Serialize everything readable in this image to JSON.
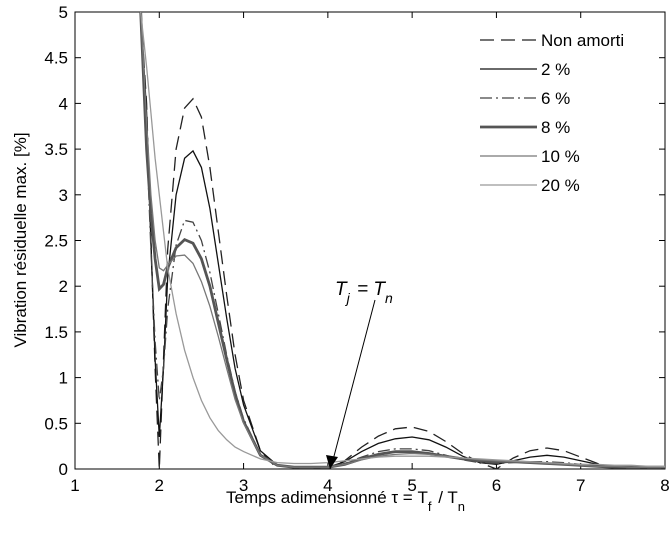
{
  "chart_data": {
    "type": "line",
    "title": "",
    "xlabel": "Temps adimensionné τ = T_f / T_n",
    "ylabel": "Vibration résiduelle max. [%]",
    "xlim": [
      1,
      8
    ],
    "ylim": [
      0,
      5
    ],
    "xticks": [
      "1",
      "2",
      "3",
      "4",
      "5",
      "6",
      "7",
      "8"
    ],
    "yticks": [
      "0",
      "0.5",
      "1",
      "1.5",
      "2",
      "2.5",
      "3",
      "3.5",
      "4",
      "4.5",
      "5"
    ],
    "grid": false,
    "legend_position": "top-right",
    "annotation": {
      "text": "T_j = T_n",
      "x": 4,
      "y": 0
    },
    "series": [
      {
        "name": "Non amorti",
        "color": "#222222",
        "dash": "dashed",
        "x": [
          1.78,
          1.85,
          1.9,
          1.95,
          2.0,
          2.05,
          2.1,
          2.2,
          2.3,
          2.4,
          2.5,
          2.6,
          2.7,
          2.8,
          2.9,
          3.0,
          3.2,
          3.4,
          3.6,
          3.8,
          4.0,
          4.2,
          4.4,
          4.6,
          4.8,
          5.0,
          5.2,
          5.4,
          5.6,
          5.8,
          6.0,
          6.2,
          6.4,
          6.6,
          6.8,
          7.0,
          7.2,
          7.4,
          7.6,
          7.8,
          8.0
        ],
        "y": [
          5.0,
          4.0,
          2.5,
          1.1,
          0.0,
          1.2,
          2.4,
          3.5,
          3.95,
          4.05,
          3.85,
          3.3,
          2.6,
          1.9,
          1.25,
          0.75,
          0.2,
          0.0,
          0.0,
          0.0,
          0.0,
          0.09,
          0.24,
          0.36,
          0.44,
          0.46,
          0.41,
          0.3,
          0.17,
          0.07,
          0.0,
          0.12,
          0.2,
          0.23,
          0.2,
          0.13,
          0.06,
          0.02,
          0.0,
          0.0,
          0.0
        ]
      },
      {
        "name": "2 %",
        "color": "#111111",
        "dash": "solid",
        "x": [
          1.78,
          1.85,
          1.9,
          1.95,
          2.0,
          2.05,
          2.1,
          2.2,
          2.3,
          2.4,
          2.5,
          2.6,
          2.7,
          2.8,
          2.9,
          3.0,
          3.2,
          3.4,
          3.6,
          3.8,
          4.0,
          4.2,
          4.4,
          4.6,
          4.8,
          5.0,
          5.2,
          5.4,
          5.6,
          5.8,
          6.0,
          6.2,
          6.4,
          6.6,
          6.8,
          7.0,
          7.2,
          7.4,
          7.6,
          7.8,
          8.0
        ],
        "y": [
          5.0,
          3.9,
          2.5,
          1.2,
          0.35,
          1.1,
          2.1,
          3.0,
          3.4,
          3.48,
          3.3,
          2.85,
          2.25,
          1.65,
          1.1,
          0.7,
          0.2,
          0.04,
          0.02,
          0.02,
          0.02,
          0.08,
          0.19,
          0.28,
          0.33,
          0.35,
          0.32,
          0.24,
          0.14,
          0.07,
          0.05,
          0.09,
          0.13,
          0.15,
          0.13,
          0.09,
          0.05,
          0.03,
          0.02,
          0.02,
          0.02
        ]
      },
      {
        "name": "6 %",
        "color": "#444444",
        "dash": "dashdot",
        "x": [
          1.78,
          1.85,
          1.9,
          1.95,
          2.0,
          2.05,
          2.1,
          2.2,
          2.3,
          2.4,
          2.5,
          2.6,
          2.7,
          2.8,
          2.9,
          3.0,
          3.2,
          3.4,
          3.6,
          3.8,
          4.0,
          4.2,
          4.4,
          4.6,
          4.8,
          5.0,
          5.2,
          5.4,
          5.6,
          5.8,
          6.0,
          6.2,
          6.4,
          6.6,
          6.8,
          7.0,
          7.2,
          7.4,
          7.6,
          7.8,
          8.0
        ],
        "y": [
          5.0,
          3.6,
          2.4,
          1.4,
          0.75,
          1.1,
          1.75,
          2.45,
          2.72,
          2.7,
          2.5,
          2.15,
          1.7,
          1.25,
          0.85,
          0.55,
          0.16,
          0.04,
          0.02,
          0.02,
          0.02,
          0.06,
          0.13,
          0.19,
          0.22,
          0.22,
          0.2,
          0.15,
          0.1,
          0.07,
          0.06,
          0.07,
          0.08,
          0.08,
          0.07,
          0.05,
          0.04,
          0.03,
          0.02,
          0.02,
          0.02
        ]
      },
      {
        "name": "8 %",
        "color": "#555555",
        "dash": "bold",
        "x": [
          1.78,
          1.85,
          1.9,
          1.95,
          2.0,
          2.05,
          2.1,
          2.2,
          2.3,
          2.4,
          2.5,
          2.6,
          2.7,
          2.8,
          2.9,
          3.0,
          3.2,
          3.4,
          3.6,
          3.8,
          4.0,
          4.2,
          4.4,
          4.6,
          4.8,
          5.0,
          5.2,
          5.4,
          5.6,
          5.8,
          6.0,
          6.2,
          6.4,
          6.6,
          6.8,
          7.0,
          7.2,
          7.4,
          7.6,
          7.8,
          8.0
        ],
        "y": [
          5.0,
          3.5,
          2.8,
          2.3,
          1.97,
          2.02,
          2.2,
          2.42,
          2.51,
          2.47,
          2.3,
          2.0,
          1.6,
          1.2,
          0.82,
          0.52,
          0.15,
          0.04,
          0.02,
          0.02,
          0.02,
          0.05,
          0.11,
          0.16,
          0.19,
          0.19,
          0.17,
          0.14,
          0.11,
          0.09,
          0.08,
          0.08,
          0.07,
          0.06,
          0.05,
          0.04,
          0.03,
          0.02,
          0.02,
          0.02,
          0.02
        ]
      },
      {
        "name": "10 %",
        "color": "#777777",
        "dash": "solid",
        "x": [
          1.78,
          1.85,
          1.9,
          1.95,
          2.0,
          2.05,
          2.1,
          2.2,
          2.3,
          2.4,
          2.5,
          2.6,
          2.7,
          2.8,
          2.9,
          3.0,
          3.2,
          3.4,
          3.6,
          3.8,
          4.0,
          4.2,
          4.4,
          4.6,
          4.8,
          5.0,
          5.2,
          5.4,
          5.6,
          5.8,
          6.0,
          6.2,
          6.4,
          6.6,
          6.8,
          7.0,
          7.2,
          7.4,
          7.6,
          7.8,
          8.0
        ],
        "y": [
          5.0,
          3.8,
          3.0,
          2.5,
          2.2,
          2.17,
          2.23,
          2.33,
          2.34,
          2.25,
          2.05,
          1.78,
          1.45,
          1.1,
          0.76,
          0.5,
          0.15,
          0.04,
          0.02,
          0.02,
          0.02,
          0.05,
          0.1,
          0.14,
          0.16,
          0.17,
          0.16,
          0.14,
          0.12,
          0.1,
          0.09,
          0.08,
          0.07,
          0.06,
          0.05,
          0.04,
          0.03,
          0.03,
          0.02,
          0.02,
          0.02
        ]
      },
      {
        "name": "20 %",
        "color": "#999999",
        "dash": "solid",
        "x": [
          1.78,
          1.85,
          1.9,
          1.95,
          2.0,
          2.05,
          2.1,
          2.2,
          2.3,
          2.4,
          2.5,
          2.6,
          2.7,
          2.8,
          2.9,
          3.0,
          3.2,
          3.4,
          3.6,
          3.8,
          4.0,
          4.2,
          4.4,
          4.6,
          4.8,
          5.0,
          5.2,
          5.4,
          5.6,
          5.8,
          6.0,
          6.2,
          6.4,
          6.6,
          6.8,
          7.0,
          7.2,
          7.4,
          7.6,
          7.8,
          8.0
        ],
        "y": [
          5.0,
          4.4,
          3.9,
          3.4,
          3.0,
          2.6,
          2.2,
          1.7,
          1.3,
          1.0,
          0.75,
          0.56,
          0.42,
          0.32,
          0.24,
          0.19,
          0.11,
          0.07,
          0.06,
          0.06,
          0.07,
          0.09,
          0.11,
          0.13,
          0.14,
          0.14,
          0.14,
          0.13,
          0.12,
          0.11,
          0.1,
          0.09,
          0.08,
          0.07,
          0.06,
          0.05,
          0.05,
          0.04,
          0.04,
          0.03,
          0.03
        ]
      }
    ]
  }
}
